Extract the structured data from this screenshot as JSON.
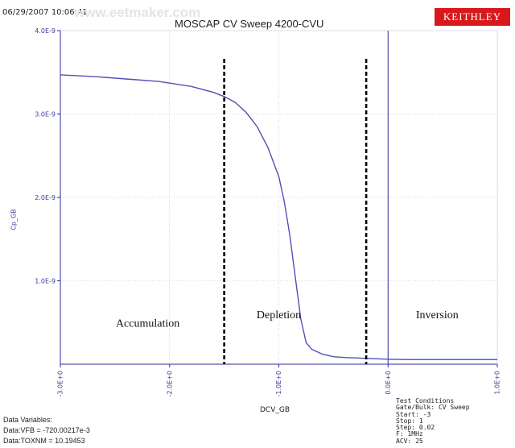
{
  "header": {
    "timestamp": "06/29/2007 10:06:41",
    "watermark": "www.eetmaker.com",
    "logo_text": "KEITHLEY"
  },
  "colors": {
    "curve": "#5050b8",
    "axis": "#2b2b9a",
    "tick_text": "#3a3a9a",
    "logo_bg": "#d8191c"
  },
  "chart_data": {
    "type": "line",
    "title": "MOSCAP CV Sweep 4200-CVU",
    "xlabel": "DCV_GB",
    "ylabel": "Cp_GB",
    "xlim": [
      -3.0,
      1.0
    ],
    "ylim": [
      0,
      4e-09
    ],
    "x_ticks": [
      "-3.0E+0",
      "-2.0E+0",
      "-1.0E+0",
      "0.0E+0",
      "1.0E+0"
    ],
    "y_ticks": [
      "1.0E-9",
      "2.0E-9",
      "3.0E-9",
      "4.0E-9"
    ],
    "series": [
      {
        "x": [
          -3.0,
          -2.7,
          -2.4,
          -2.1,
          -1.8,
          -1.6,
          -1.5,
          -1.4,
          -1.3,
          -1.2,
          -1.1,
          -1.0,
          -0.95,
          -0.9,
          -0.85,
          -0.8,
          -0.75,
          -0.7,
          -0.6,
          -0.5,
          -0.4,
          -0.3,
          -0.2,
          -0.1,
          0.0,
          0.2,
          0.5,
          1.0
        ],
        "y": [
          3.47e-09,
          3.45e-09,
          3.42e-09,
          3.39e-09,
          3.33e-09,
          3.26e-09,
          3.21e-09,
          3.14e-09,
          3.02e-09,
          2.85e-09,
          2.6e-09,
          2.25e-09,
          1.95e-09,
          1.55e-09,
          1.05e-09,
          5.5e-10,
          2.6e-10,
          1.8e-10,
          1.2e-10,
          9e-11,
          8e-11,
          7.5e-11,
          7e-11,
          6.5e-11,
          6e-11,
          5.5e-11,
          5.5e-11,
          5.5e-11
        ]
      }
    ],
    "boundaries": [
      -1.5,
      -0.2
    ],
    "regions": [
      {
        "label": "Accumulation",
        "x": -2.2,
        "y": 4.5e-10
      },
      {
        "label": "Depletion",
        "x": -1.0,
        "y": 5.5e-10
      },
      {
        "label": "Inversion",
        "x": 0.45,
        "y": 5.5e-10
      }
    ],
    "grid": true
  },
  "data_variables": {
    "title": "Data Variables:",
    "vfb": "Data:VFB = -720.00217e-3",
    "toxnm": "Data:TOXNM = 10.19453"
  },
  "test_conditions": [
    "Test Conditions",
    "Gate/Bulk: CV Sweep",
    "Start: -3",
    "Stop: 1",
    "Step: 0.02",
    "F: 1MHz",
    "ACV: 25"
  ]
}
